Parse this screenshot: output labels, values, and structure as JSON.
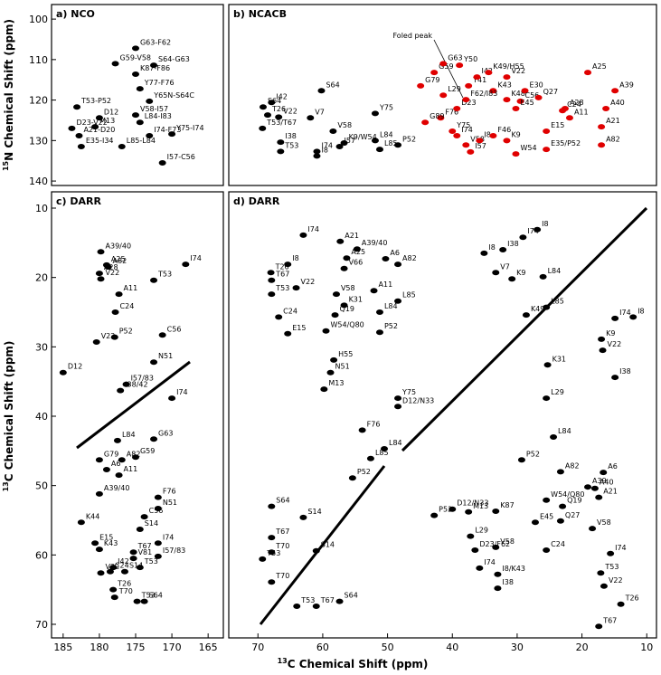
{
  "figure": {
    "xlabel_sup": "13",
    "xlabel": "C Chemical Shift (ppm)"
  },
  "chart_data": [
    {
      "type": "scatter",
      "title": "a) NCO",
      "ylabel_sup": "15",
      "ylabel": "N Chemical Shift (ppm)",
      "xlim": [
        186.6,
        162.9
      ],
      "ylim": [
        96.4,
        141.1
      ],
      "yticks": [
        100,
        110,
        120,
        130,
        140
      ],
      "series": [
        {
          "color": "#000000",
          "labels": [
            "G63-F62",
            "G59-V58",
            "S64-G63",
            "K87-F86",
            "Y77-F76",
            "Y65N-S64C",
            "V58-I57",
            "T53-P52",
            "L84-I83",
            "D23-V22",
            "A21-D20",
            "I74-F73",
            "Y75-I74",
            "E35-I34",
            "L85-L84",
            "I57-C56",
            "D12",
            "M13"
          ],
          "x": [
            175,
            177.8,
            172.5,
            175,
            174.4,
            173.1,
            175,
            183.1,
            174.4,
            183.8,
            182.8,
            173.1,
            170,
            182.5,
            176.9,
            171.3,
            180,
            180.6
          ],
          "values": [
            107.2,
            111,
            111.4,
            113.6,
            117.2,
            120.3,
            123.7,
            121.7,
            125.5,
            127,
            128.8,
            128.8,
            128.4,
            131.5,
            131.5,
            135.5,
            124.4,
            126.6
          ]
        }
      ]
    },
    {
      "type": "scatter",
      "title": "b) NCACB",
      "annotation": "Foled peak",
      "xlim": [
        74.5,
        8.5
      ],
      "ylim": [
        96.4,
        141.1
      ],
      "series": [
        {
          "color": "#000000",
          "labels": [
            "S64",
            "T26",
            "I42",
            "V22",
            "T53/T67",
            "I38",
            "T53",
            "S64",
            "V7",
            "I74",
            "I8",
            "I57",
            "K9/W54",
            "V58",
            "Y75",
            "L84",
            "L85",
            "P52"
          ],
          "x": [
            69.2,
            68.5,
            67.9,
            66.8,
            69.3,
            66.5,
            66.5,
            60.2,
            61.9,
            60.9,
            60.9,
            57.4,
            56.7,
            58.4,
            51.9,
            51.9,
            51.2,
            48.4
          ],
          "values": [
            121.7,
            123.7,
            120.6,
            124.2,
            127,
            130.4,
            132.7,
            117.7,
            124.4,
            132.7,
            133.8,
            131.5,
            130.6,
            127.7,
            123.3,
            130,
            132.2,
            131.1
          ]
        },
        {
          "color": "#e00000",
          "labels": [
            "G79",
            "G59",
            "G63",
            "Y50",
            "Y41",
            "I42",
            "K49/H55",
            "K43",
            "V22",
            "K48",
            "E30",
            "C56",
            "Q27",
            "A25",
            "A39",
            "A28",
            "A40",
            "A11",
            "C24",
            "E45",
            "E15",
            "A21",
            "A82",
            "K9",
            "W54",
            "E35/P52",
            "L29",
            "F76",
            "G89",
            "D23",
            "Y75",
            "I74",
            "V58",
            "I8",
            "F46",
            "I57",
            "F62/I83"
          ],
          "x": [
            44.9,
            42.8,
            41.4,
            38.9,
            37.5,
            36.2,
            34.4,
            33.7,
            31.6,
            31.6,
            28.8,
            29.5,
            26.7,
            19.1,
            14.9,
            22.6,
            16.3,
            21.9,
            23,
            30.2,
            25.5,
            17,
            17,
            31.6,
            30.2,
            25.5,
            41.4,
            41.8,
            44.2,
            39.3,
            40,
            39.3,
            37.9,
            35.8,
            33.7,
            37.2,
            37.9
          ],
          "values": [
            116.5,
            113.2,
            111,
            111.4,
            116.5,
            114.3,
            113.2,
            117.7,
            114.3,
            119.9,
            117.7,
            120.3,
            119.4,
            113.2,
            117.7,
            122.1,
            122.1,
            124.4,
            122.6,
            122.1,
            127.7,
            126.6,
            131.1,
            130,
            133.3,
            132.2,
            118.8,
            124.4,
            125.5,
            122.1,
            127.7,
            128.8,
            131.1,
            130,
            128.8,
            132.8,
            119.9
          ]
        }
      ]
    },
    {
      "type": "scatter",
      "title": "c) DARR",
      "ylabel_sup": "13",
      "ylabel": "C Chemical Shift (ppm)",
      "xlim": [
        186.6,
        162.9
      ],
      "ylim": [
        7.65,
        71.96
      ],
      "xticks": [
        185,
        180,
        175,
        170,
        165
      ],
      "yticks": [
        10,
        20,
        30,
        40,
        50,
        60,
        70
      ],
      "series": [
        {
          "color": "#000000",
          "labels": [
            "I74",
            "A39/40",
            "A25",
            "A82",
            "A28",
            "V22",
            "T53",
            "A11",
            "C24",
            "C56",
            "V22",
            "P52",
            "N51",
            "I57/83",
            "I38/42",
            "D12",
            "I74",
            "G63",
            "L84",
            "G79",
            "A82",
            "G59",
            "A6",
            "A11",
            "A39/40",
            "F76",
            "N51",
            "C56",
            "K44",
            "S14",
            "E15",
            "K43",
            "T67",
            "V81",
            "I74",
            "I57/83",
            "T53",
            "S14",
            "I42",
            "C24",
            "V22",
            "T26",
            "T70",
            "T53",
            "S64"
          ],
          "x": [
            168.1,
            179.8,
            179,
            178.8,
            180,
            179.8,
            172.5,
            177.3,
            177.8,
            171.3,
            180.4,
            177.9,
            172.5,
            176.3,
            177.1,
            185,
            170,
            172.5,
            177.5,
            180,
            176.9,
            175,
            179,
            177.3,
            180,
            171.9,
            171.9,
            173.8,
            182.5,
            174.4,
            180.6,
            180,
            175.3,
            175.3,
            171.9,
            171.9,
            174.4,
            176.5,
            178.1,
            178.5,
            179.8,
            178.1,
            177.9,
            174.8,
            173.8
          ],
          "values": [
            18.1,
            16.3,
            18.2,
            18.5,
            19.4,
            20.2,
            20.4,
            22.4,
            25,
            28.3,
            29.3,
            28.6,
            32.2,
            35.4,
            36.3,
            33.7,
            37.4,
            43.3,
            43.5,
            46.3,
            46.3,
            45.9,
            47.7,
            48.5,
            51.2,
            51.7,
            53.3,
            54.5,
            55.3,
            56.3,
            58.3,
            59.2,
            59.6,
            60.5,
            58.3,
            60.2,
            61.8,
            62.4,
            61.8,
            62.4,
            62.6,
            65,
            66.1,
            66.7,
            66.7
          ]
        }
      ]
    },
    {
      "type": "scatter",
      "title": "d) DARR",
      "xlim": [
        74.5,
        8.5
      ],
      "ylim": [
        7.65,
        71.96
      ],
      "xticks": [
        70,
        60,
        50,
        40,
        30,
        20,
        10
      ],
      "series": [
        {
          "color": "#000000",
          "labels": [
            "I74",
            "A21",
            "A39/40",
            "A6",
            "A82",
            "I8",
            "T26",
            "T67",
            "T53",
            "V22",
            "V66",
            "A25",
            "A11",
            "V58",
            "L85",
            "L84",
            "P52",
            "K31",
            "C24",
            "E15",
            "Q19",
            "W54/Q80",
            "H55",
            "N51",
            "M13",
            "Y75",
            "D12/N33",
            "F76",
            "L84",
            "L85",
            "P52",
            "S64",
            "S14",
            "T67",
            "T70",
            "T53",
            "S14",
            "T70",
            "T53",
            "T67",
            "S64",
            "P52",
            "I8",
            "I74",
            "I38",
            "I8",
            "V7",
            "K9",
            "L84",
            "L85",
            "K49",
            "I74",
            "I8",
            "K9",
            "V22",
            "K31",
            "I38",
            "L29",
            "L84",
            "P52",
            "A6",
            "A82",
            "A40",
            "A21",
            "A39",
            "W54/Q80",
            "Q19",
            "Q27",
            "E45",
            "C24",
            "V58",
            "I74",
            "T53",
            "V22",
            "T26",
            "T67",
            "M13",
            "L29",
            "D23/F62",
            "V58",
            "I74",
            "I8/K43",
            "I38",
            "D12/N33",
            "K87"
          ],
          "x": [
            63,
            57.3,
            54.7,
            50.3,
            48.4,
            65.4,
            68,
            67.9,
            67.9,
            64.1,
            56.7,
            56.3,
            52.1,
            57.9,
            48.4,
            51.2,
            51.2,
            56.7,
            66.8,
            65.4,
            58.1,
            59.5,
            58.3,
            58.8,
            59.8,
            48.4,
            48.4,
            53.9,
            50.5,
            52.6,
            55.4,
            67.9,
            63,
            67.9,
            67.9,
            69.3,
            61,
            67.9,
            64,
            61,
            57.4,
            42.8,
            26.9,
            29.1,
            32.2,
            35.1,
            33.3,
            30.8,
            26,
            25.5,
            28.6,
            14.9,
            12.1,
            17,
            16.8,
            25.3,
            14.9,
            25.5,
            24.4,
            29.3,
            16.7,
            23.3,
            18,
            17.4,
            19.1,
            25.5,
            23,
            23.3,
            27.2,
            25.5,
            18.4,
            15.6,
            17.1,
            16.6,
            14,
            17.4,
            37.5,
            37.2,
            36.5,
            33.3,
            35.8,
            33,
            33,
            40,
            33.3
          ],
          "values": [
            13.9,
            14.8,
            15.9,
            17.3,
            18.1,
            18.1,
            19.3,
            20.4,
            22.4,
            21.5,
            18.7,
            17.2,
            21.9,
            22.4,
            23.4,
            25,
            27.9,
            24,
            25.7,
            28.1,
            25.4,
            27.7,
            31.9,
            33.7,
            36.1,
            37.4,
            38.6,
            42,
            44.7,
            46.1,
            48.9,
            53,
            54.6,
            57.5,
            59.6,
            60.6,
            59.4,
            63.9,
            67.4,
            67.4,
            66.7,
            54.3,
            13.1,
            14.2,
            16,
            16.5,
            19.3,
            20.2,
            19.9,
            24.3,
            25.4,
            25.9,
            25.7,
            28.9,
            30.5,
            32.6,
            34.4,
            37.4,
            43,
            46.3,
            48.1,
            48,
            50.4,
            51.7,
            50.2,
            52.1,
            53,
            55.1,
            55.3,
            59.3,
            56.2,
            59.8,
            62.6,
            64.5,
            67.1,
            70.3,
            53.8,
            57.3,
            59.3,
            58.9,
            61.9,
            62.8,
            64.8,
            53.4,
            53.7
          ]
        }
      ]
    }
  ]
}
